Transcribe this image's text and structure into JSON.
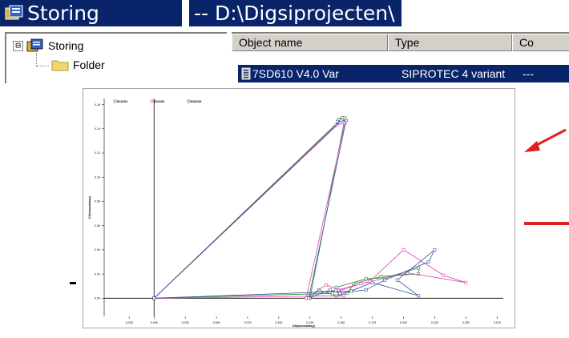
{
  "window": {
    "title": "Storing",
    "path": "-- D:\\Digsiprojecten\\"
  },
  "tree": {
    "root": {
      "expander": "⊟",
      "label": "Storing"
    },
    "child": {
      "label": "Folder"
    }
  },
  "list": {
    "columns": [
      "Object name",
      "Type",
      "Co"
    ],
    "rows": [
      {
        "name": "7SD610 V4.0 Var",
        "type": "SIPROTEC 4 variant",
        "comment": "---"
      }
    ]
  },
  "colors": {
    "titlebar": "#0a246a",
    "selection": "#0a246a",
    "annotation": "#e02020"
  },
  "chart_data": {
    "type": "line",
    "xlabel": "I/A(secondary)",
    "ylabel": "I/A(secondary)",
    "x_ticks": [
      "-0.020",
      "0.000",
      "0.025",
      "0.050",
      "0.075",
      "0.100",
      "0.125",
      "0.150",
      "0.175",
      "0.200",
      "0.225",
      "0.250",
      "0.275"
    ],
    "y_ticks": [
      "0.00",
      "0.02",
      "0.04",
      "0.06",
      "0.08",
      "0.10",
      "0.12",
      "0.14",
      "0.16"
    ],
    "xlim": [
      -0.04,
      0.28
    ],
    "ylim": [
      -0.015,
      0.165
    ],
    "legend": [
      "ID1/IS1",
      "ID2/IS2",
      "ID3/IS3"
    ],
    "series": [
      {
        "name": "ID1/IS1",
        "color": "#2e8b2e",
        "points": [
          [
            0,
            0
          ],
          [
            0.151,
            0.149
          ],
          [
            0.148,
            0.148
          ],
          [
            0.153,
            0.149
          ],
          [
            0.125,
            0
          ],
          [
            0.132,
            0.007
          ],
          [
            0.146,
            0.002
          ],
          [
            0.155,
            0.004
          ],
          [
            0.16,
            0.012
          ],
          [
            0.182,
            0.018
          ],
          [
            0.212,
            0.02
          ],
          [
            0.212,
            0.025
          ],
          [
            0.186,
            0.017
          ],
          [
            0.17,
            0.016
          ],
          [
            0.146,
            0.009
          ],
          [
            0.143,
            0.004
          ],
          [
            0,
            0
          ]
        ]
      },
      {
        "name": "ID2/IS2",
        "color": "#e040b0",
        "points": [
          [
            0,
            0
          ],
          [
            0.149,
            0.145
          ],
          [
            0.146,
            0.143
          ],
          [
            0.153,
            0.145
          ],
          [
            0.122,
            0
          ],
          [
            0.138,
            0.011
          ],
          [
            0.148,
            0.007
          ],
          [
            0.173,
            0.014
          ],
          [
            0.2,
            0.04
          ],
          [
            0.232,
            0.019
          ],
          [
            0.25,
            0.013
          ],
          [
            0.203,
            0.021
          ],
          [
            0.166,
            0.012
          ],
          [
            0.148,
            0.006
          ],
          [
            0.152,
            0.002
          ],
          [
            0,
            0
          ]
        ]
      },
      {
        "name": "ID3/IS3",
        "color": "#3050a0",
        "points": [
          [
            0,
            0
          ],
          [
            0.15,
            0.147
          ],
          [
            0.147,
            0.146
          ],
          [
            0.154,
            0.147
          ],
          [
            0.124,
            0
          ],
          [
            0.141,
            0.007
          ],
          [
            0.149,
            0.004
          ],
          [
            0.17,
            0.007
          ],
          [
            0.185,
            0.015
          ],
          [
            0.22,
            0.03
          ],
          [
            0.225,
            0.04
          ],
          [
            0.195,
            0.015
          ],
          [
            0.212,
            0.002
          ],
          [
            0.175,
            0.013
          ],
          [
            0.158,
            0.006
          ],
          [
            0,
            0
          ]
        ]
      }
    ]
  }
}
